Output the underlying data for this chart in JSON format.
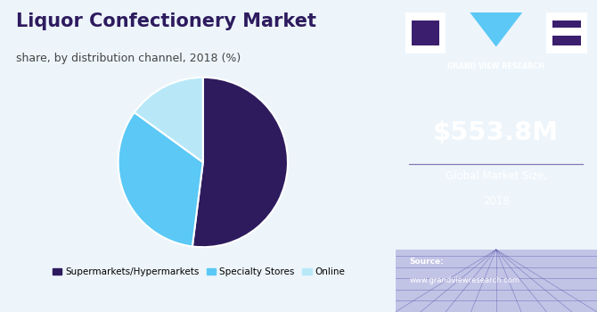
{
  "title": "Liquor Confectionery Market",
  "subtitle": "share, by distribution channel, 2018 (%)",
  "pie_values": [
    52,
    33,
    15
  ],
  "pie_labels": [
    "Supermarkets/Hypermarkets",
    "Specialty Stores",
    "Online"
  ],
  "pie_colors": [
    "#2d1b5e",
    "#5bc8f5",
    "#b8e8f8"
  ],
  "pie_startangle": 90,
  "legend_labels": [
    "Supermarkets/Hypermarkets",
    "Specialty Stores",
    "Online"
  ],
  "bg_color": "#edf5fb",
  "right_panel_bg": "#3b1f6e",
  "right_panel_text_big": "$553.8M",
  "right_panel_text_sub1": "Global Market Size,",
  "right_panel_text_sub2": "2018",
  "source_label": "Source:",
  "source_url": "www.grandviewresearch.com",
  "gvr_label": "GRAND VIEW RESEARCH",
  "title_color": "#2d1b5e",
  "subtitle_color": "#444444",
  "legend_dot_colors": [
    "#2d1b5e",
    "#5bc8f5",
    "#b8e8f8"
  ],
  "right_text_color": "#ffffff",
  "divider_color": "#8878b0",
  "top_bar_color": "#5bc8f5",
  "grid_color": "#5555aa"
}
